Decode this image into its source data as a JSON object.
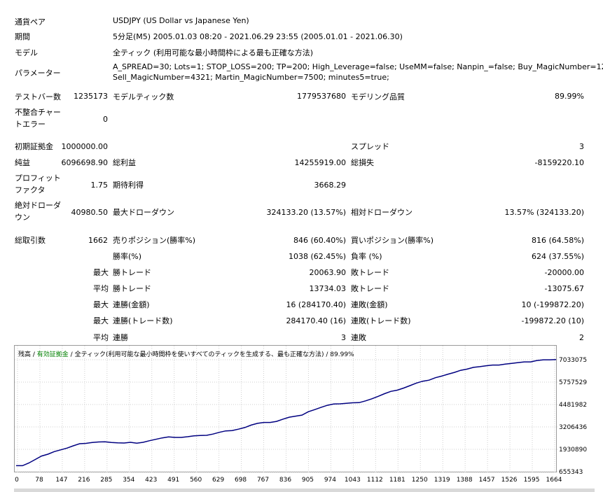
{
  "info": {
    "currency_pair_label": "通貨ペア",
    "currency_pair_value": "USDJPY (US Dollar vs Japanese Yen)",
    "period_label": "期間",
    "period_value": "5分足(M5) 2005.01.03 08:20 - 2021.06.29 23:55 (2005.01.01 - 2021.06.30)",
    "model_label": "モデル",
    "model_value": "全ティック (利用可能な最小時間枠による最も正確な方法)",
    "parameters_label": "パラメーター",
    "parameters_line1": "A_SPREAD=30; Lots=1; STOP_LOSS=200; TP=200; High_Leverage=false; UseMM=false; Nanpin_=false; Buy_MagicNumber=1234;",
    "parameters_line2": "Sell_MagicNumber=4321; Martin_MagicNumber=7500; minutes5=true;"
  },
  "stats": {
    "test_bars_label": "テストバー数",
    "test_bars_value": "1235173",
    "model_ticks_label": "モデルティック数",
    "model_ticks_value": "1779537680",
    "model_quality_label": "モデリング品質",
    "model_quality_value": "89.99%",
    "mismatch_label_1": "不整合チャー",
    "mismatch_label_2": "トエラー",
    "mismatch_value": "0",
    "initial_deposit_label": "初期証拠金",
    "initial_deposit_value": "1000000.00",
    "spread_label": "スプレッド",
    "spread_value": "3",
    "net_profit_label": "純益",
    "net_profit_value": "6096698.90",
    "gross_profit_label": "総利益",
    "gross_profit_value": "14255919.00",
    "gross_loss_label": "総損失",
    "gross_loss_value": "-8159220.10",
    "profit_factor_label_1": "プロフィット",
    "profit_factor_label_2": "ファクタ",
    "profit_factor_value": "1.75",
    "expected_payoff_label": "期待利得",
    "expected_payoff_value": "3668.29",
    "abs_drawdown_label_1": "絶対ドローダ",
    "abs_drawdown_label_2": "ウン",
    "abs_drawdown_value": "40980.50",
    "max_drawdown_label": "最大ドローダウン",
    "max_drawdown_value": "324133.20 (13.57%)",
    "rel_drawdown_label": "相対ドローダウン",
    "rel_drawdown_value": "13.57% (324133.20)",
    "total_trades_label": "総取引数",
    "total_trades_value": "1662",
    "short_pos_label": "売りポジション(勝率%)",
    "short_pos_value": "846 (60.40%)",
    "long_pos_label": "買いポジション(勝率%)",
    "long_pos_value": "816 (64.58%)",
    "win_rate_label": "勝率(%)",
    "win_rate_value": "1038 (62.45%)",
    "loss_rate_label": "負率 (%)",
    "loss_rate_value": "624 (37.55%)",
    "max_prefix": "最大",
    "avg_prefix": "平均",
    "win_trade_label": "勝トレード",
    "loss_trade_label": "敗トレード",
    "max_win_trade": "20063.90",
    "max_loss_trade": "-20000.00",
    "avg_win_trade": "13734.03",
    "avg_loss_trade": "-13075.67",
    "consec_wins_amount_label": "連勝(金額)",
    "consec_wins_amount_value": "16 (284170.40)",
    "consec_losses_amount_label": "連敗(金額)",
    "consec_losses_amount_value": "10 (-199872.20)",
    "consec_wins_count_label": "連勝(トレード数)",
    "consec_wins_count_value": "284170.40 (16)",
    "consec_losses_count_label": "連敗(トレード数)",
    "consec_losses_count_value": "-199872.20 (10)",
    "avg_consec_wins_label": "連勝",
    "avg_consec_wins_value": "3",
    "avg_consec_losses_label": "連敗",
    "avg_consec_losses_value": "2"
  },
  "chart_legend": {
    "balance": "残高",
    "sep1": " / ",
    "equity": "有効証拠金",
    "sep2": " / ",
    "model": "全ティック(利用可能な最小時間枠を使いすべてのティックを生成する、最も正確な方法)",
    "sep3": " / ",
    "quality": "89.99%"
  },
  "chart_data": {
    "type": "line",
    "x_ticks": [
      "0",
      "78",
      "147",
      "216",
      "285",
      "354",
      "423",
      "491",
      "560",
      "629",
      "698",
      "767",
      "836",
      "905",
      "974",
      "1043",
      "1112",
      "1181",
      "1250",
      "1319",
      "1388",
      "1457",
      "1526",
      "1595",
      "1664"
    ],
    "y_ticks": [
      "7033075",
      "5757529",
      "4481982",
      "3206436",
      "1930890",
      "655343"
    ],
    "ylim": [
      655343,
      7033075
    ],
    "xlim": [
      0,
      1700
    ],
    "series": [
      {
        "color": "#000080",
        "x": [
          0,
          20,
          40,
          60,
          80,
          100,
          120,
          140,
          160,
          180,
          200,
          220,
          240,
          260,
          280,
          300,
          320,
          340,
          360,
          380,
          400,
          420,
          440,
          460,
          480,
          500,
          520,
          540,
          560,
          580,
          600,
          620,
          640,
          660,
          680,
          700,
          720,
          740,
          760,
          780,
          800,
          820,
          840,
          860,
          880,
          900,
          920,
          940,
          960,
          980,
          1000,
          1020,
          1040,
          1060,
          1080,
          1100,
          1120,
          1140,
          1160,
          1180,
          1200,
          1220,
          1240,
          1260,
          1280,
          1300,
          1320,
          1340,
          1360,
          1380,
          1400,
          1420,
          1440,
          1460,
          1480,
          1500,
          1520,
          1540,
          1560,
          1580,
          1600,
          1620,
          1640,
          1660,
          1680,
          1700
        ],
        "y": [
          1000000,
          1000000,
          1150000,
          1350000,
          1550000,
          1650000,
          1800000,
          1900000,
          2000000,
          2130000,
          2250000,
          2270000,
          2320000,
          2350000,
          2360000,
          2320000,
          2300000,
          2290000,
          2330000,
          2280000,
          2330000,
          2420000,
          2500000,
          2580000,
          2640000,
          2610000,
          2610000,
          2650000,
          2700000,
          2720000,
          2730000,
          2800000,
          2900000,
          2980000,
          3000000,
          3080000,
          3170000,
          3310000,
          3410000,
          3460000,
          3460000,
          3520000,
          3650000,
          3760000,
          3820000,
          3880000,
          4070000,
          4190000,
          4320000,
          4440000,
          4510000,
          4520000,
          4550000,
          4580000,
          4590000,
          4690000,
          4810000,
          4950000,
          5100000,
          5230000,
          5300000,
          5420000,
          5560000,
          5700000,
          5810000,
          5870000,
          6010000,
          6100000,
          6210000,
          6310000,
          6430000,
          6500000,
          6600000,
          6640000,
          6690000,
          6730000,
          6730000,
          6780000,
          6820000,
          6870000,
          6910000,
          6910000,
          6990000,
          7030000,
          7030000,
          7040000
        ]
      }
    ]
  }
}
